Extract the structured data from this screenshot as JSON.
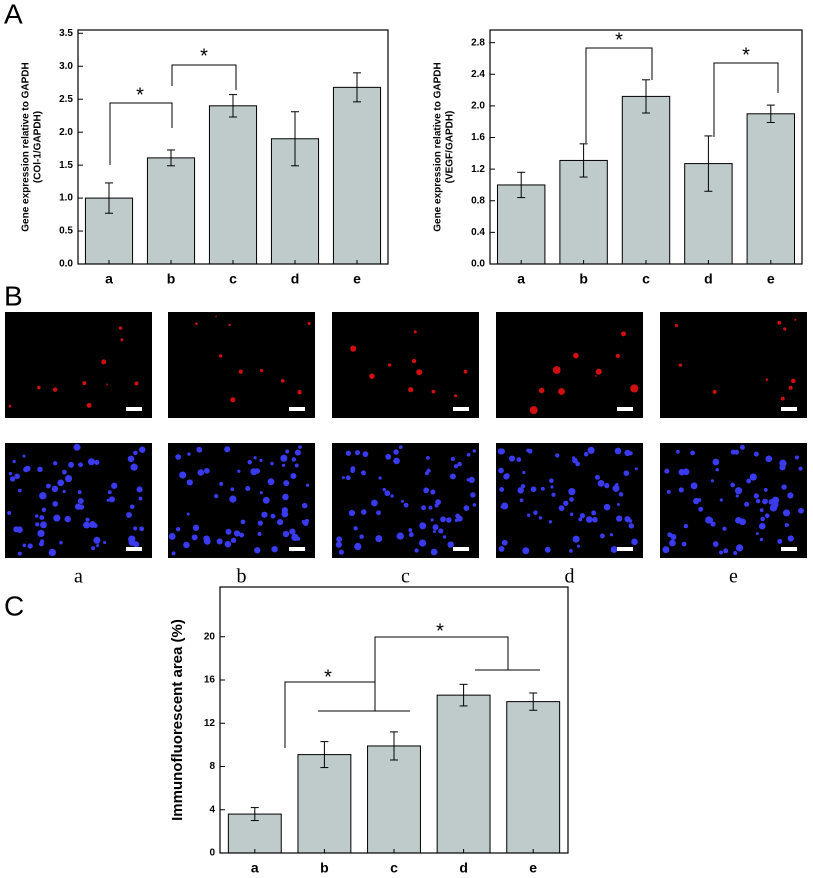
{
  "panel_labels": [
    "A",
    "B",
    "C"
  ],
  "images": {
    "labels": [
      "a",
      "b",
      "c",
      "d",
      "e"
    ]
  },
  "chart_data": [
    {
      "type": "bar",
      "ylabel": [
        "Gene expression relative to GAPDH",
        "(COl-1/GAPDH)"
      ],
      "categories": [
        "a",
        "b",
        "c",
        "d",
        "e"
      ],
      "values": [
        1.0,
        1.61,
        2.4,
        1.9,
        2.68
      ],
      "errors": [
        0.23,
        0.12,
        0.17,
        0.41,
        0.22
      ],
      "color": "#bfcacb",
      "ylim": [
        0,
        3.55
      ],
      "yticks": [
        {
          "value": 0,
          "label": "0.0"
        },
        0.5,
        {
          "value": 1,
          "label": "1.0"
        },
        1.5,
        {
          "value": 2,
          "label": "2.0"
        },
        2.5,
        {
          "value": 3,
          "label": "3.0"
        },
        3.5
      ],
      "annotations": [
        "*",
        "*"
      ]
    },
    {
      "type": "bar",
      "ylabel": [
        "Gene expression relative to GAPDH",
        "(VEGF/GAPDH)"
      ],
      "categories": [
        "a",
        "b",
        "c",
        "d",
        "e"
      ],
      "values": [
        1.0,
        1.31,
        2.12,
        1.27,
        1.9
      ],
      "errors": [
        0.16,
        0.21,
        0.21,
        0.35,
        0.11
      ],
      "color": "#bfcacb",
      "ylim": [
        0,
        2.96
      ],
      "yticks": [
        {
          "value": 0,
          "label": "0.0"
        },
        0.4,
        0.8,
        1.2,
        1.6,
        {
          "value": 2,
          "label": "2.0"
        },
        2.4,
        2.8
      ],
      "annotations": [
        "*",
        "*"
      ]
    },
    {
      "type": "bar",
      "ylabel": [
        "Immunofluorescent area (%)"
      ],
      "categories": [
        "a",
        "b",
        "c",
        "d",
        "e"
      ],
      "values": [
        3.6,
        9.1,
        9.9,
        14.6,
        14.0
      ],
      "errors": [
        0.6,
        1.2,
        1.3,
        1.0,
        0.8
      ],
      "color": "#bfcacb",
      "ylim": [
        0,
        24.6
      ],
      "yticks": [
        0,
        4,
        8,
        12,
        16,
        20
      ],
      "annotations": [
        "*",
        "*"
      ]
    }
  ]
}
